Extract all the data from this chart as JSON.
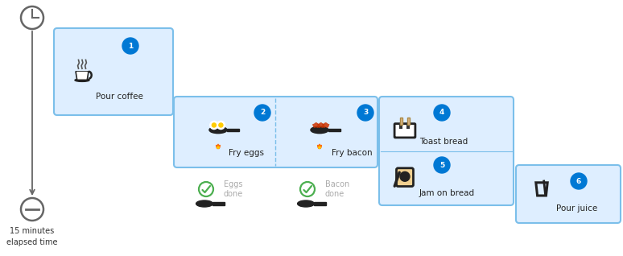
{
  "background_color": "#ffffff",
  "box_fill": "#deeeff",
  "box_edge": "#7bbfea",
  "num_circle_color": "#0078d4",
  "num_text_color": "#ffffff",
  "label_color": "#222222",
  "checkmark_color": "#4caf50",
  "done_label_color": "#aaaaaa",
  "timeline_color": "#666666",
  "figsize": [
    7.74,
    3.18
  ],
  "dpi": 100,
  "tasks": [
    {
      "id": 1,
      "label": "Pour coffee"
    },
    {
      "id": 2,
      "label": "Fry eggs"
    },
    {
      "id": 3,
      "label": "Fry bacon"
    },
    {
      "id": 4,
      "label": "Toast bread"
    },
    {
      "id": 5,
      "label": "Jam on bread"
    },
    {
      "id": 6,
      "label": "Pour juice"
    }
  ],
  "bottom_labels": [
    "Eggs\ndone",
    "Bacon\ndone"
  ],
  "timeline_bottom_text": "15 minutes\nelapsed time"
}
